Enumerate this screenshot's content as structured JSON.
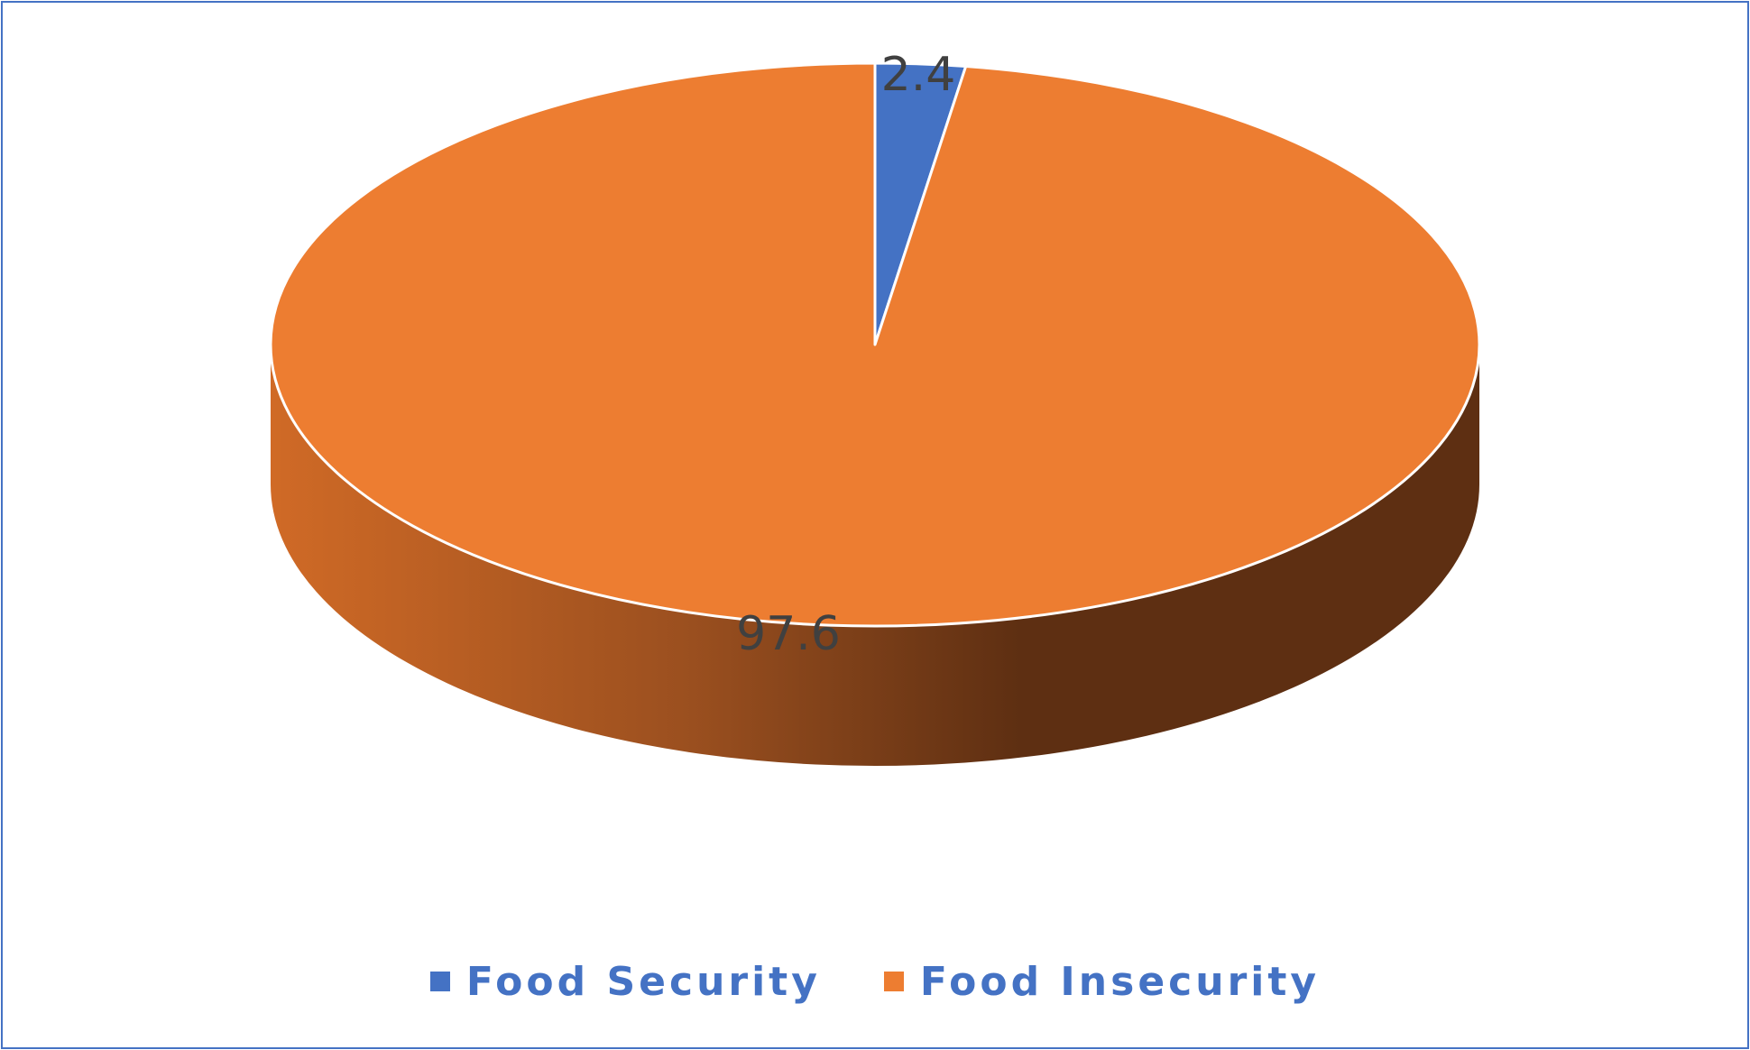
{
  "chart_data": {
    "type": "pie",
    "categories": [
      "Food Security",
      "Food Insecurity"
    ],
    "values": [
      2.4,
      97.6
    ],
    "colors": [
      "#4472c4",
      "#ed7d31"
    ],
    "side_colors": [
      "#2f5597",
      "#c55a11"
    ],
    "legend": "bottom",
    "data_labels": [
      "2.4",
      "97.6"
    ]
  }
}
